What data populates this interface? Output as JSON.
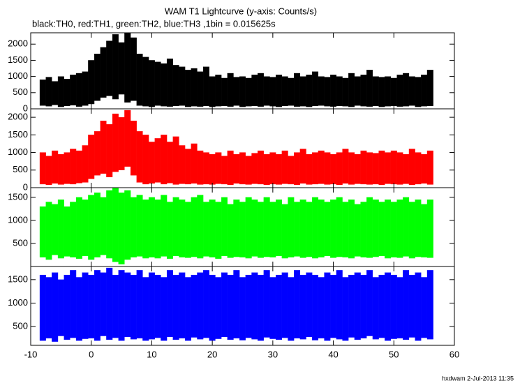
{
  "footer": "hxdwam  2-Jul-2013 11:35",
  "chart_data": [
    {
      "type": "range",
      "title": "WAM T1 Lightcurve (y-axis: Counts/s)",
      "subtitle": "black:TH0, red:TH1, green:TH2, blue:TH3 ,1bin = 0.015625s",
      "x": [
        -8,
        -7,
        -6,
        -5,
        -4,
        -3,
        -2,
        -1,
        0,
        1,
        2,
        3,
        4,
        5,
        6,
        7,
        8,
        9,
        10,
        11,
        12,
        13,
        14,
        15,
        16,
        17,
        18,
        19,
        20,
        21,
        22,
        23,
        24,
        25,
        26,
        27,
        28,
        29,
        30,
        31,
        32,
        33,
        34,
        35,
        36,
        37,
        38,
        39,
        40,
        41,
        42,
        43,
        44,
        45,
        46,
        47,
        48,
        49,
        50,
        51,
        52,
        53,
        54,
        55,
        56
      ],
      "xlim": [
        -10,
        60
      ],
      "ylim": [
        0,
        2350
      ],
      "yticks": [
        0,
        500,
        1000,
        1500,
        2000
      ],
      "series": [
        {
          "color": "#000000",
          "values": [
            900,
            980,
            850,
            1000,
            920,
            1050,
            1100,
            1150,
            1500,
            1700,
            1900,
            2100,
            2300,
            2050,
            2350,
            2200,
            1700,
            1600,
            1500,
            1450,
            1400,
            1550,
            1350,
            1300,
            1200,
            1250,
            1150,
            1300,
            1000,
            1050,
            950,
            1100,
            980,
            1000,
            950,
            1050,
            1100,
            1000,
            980,
            1050,
            1000,
            950,
            1100,
            1000,
            1050,
            1150,
            1000,
            980,
            1050,
            1000,
            950,
            1100,
            1000,
            1050,
            1200,
            1000,
            980,
            1000,
            950,
            1050,
            1100,
            1000,
            980,
            1050,
            1200
          ],
          "low": [
            100,
            80,
            120,
            60,
            90,
            110,
            70,
            100,
            150,
            250,
            350,
            400,
            300,
            450,
            200,
            250,
            100,
            80,
            60,
            100,
            80,
            70,
            90,
            100,
            60,
            80,
            70,
            90,
            60,
            80,
            90,
            70,
            100,
            60,
            80,
            90,
            70,
            100,
            80,
            60,
            90,
            100,
            70,
            80,
            60,
            90,
            100,
            80,
            70,
            90,
            80,
            60,
            100,
            80,
            70,
            90,
            60,
            80,
            90,
            70,
            80,
            100,
            60,
            80,
            90
          ]
        }
      ]
    },
    {
      "type": "range",
      "x": [
        -8,
        -7,
        -6,
        -5,
        -4,
        -3,
        -2,
        -1,
        0,
        1,
        2,
        3,
        4,
        5,
        6,
        7,
        8,
        9,
        10,
        11,
        12,
        13,
        14,
        15,
        16,
        17,
        18,
        19,
        20,
        21,
        22,
        23,
        24,
        25,
        26,
        27,
        28,
        29,
        30,
        31,
        32,
        33,
        34,
        35,
        36,
        37,
        38,
        39,
        40,
        41,
        42,
        43,
        44,
        45,
        46,
        47,
        48,
        49,
        50,
        51,
        52,
        53,
        54,
        55,
        56
      ],
      "xlim": [
        -10,
        60
      ],
      "ylim": [
        0,
        2240
      ],
      "yticks": [
        0,
        500,
        1000,
        1500,
        2000
      ],
      "series": [
        {
          "color": "#ff0000",
          "values": [
            1000,
            900,
            1050,
            950,
            1000,
            1100,
            1050,
            1200,
            1500,
            1600,
            1900,
            1800,
            2100,
            2000,
            2200,
            1900,
            1600,
            1500,
            1300,
            1400,
            1500,
            1300,
            1450,
            1200,
            1100,
            1250,
            1050,
            1000,
            950,
            1000,
            900,
            1050,
            950,
            1000,
            900,
            980,
            1050,
            950,
            1000,
            950,
            1050,
            900,
            1000,
            1100,
            950,
            1000,
            1050,
            1000,
            950,
            1000,
            1100,
            1000,
            950,
            1050,
            1000,
            980,
            1050,
            1000,
            1050,
            1000,
            950,
            1100,
            1000,
            950,
            1050
          ],
          "low": [
            100,
            80,
            120,
            90,
            110,
            100,
            130,
            150,
            250,
            350,
            400,
            300,
            450,
            500,
            600,
            350,
            150,
            100,
            120,
            150,
            100,
            130,
            90,
            110,
            100,
            120,
            90,
            100,
            90,
            110,
            100,
            80,
            120,
            100,
            90,
            110,
            100,
            80,
            100,
            90,
            110,
            100,
            80,
            120,
            90,
            100,
            110,
            90,
            100,
            80,
            120,
            90,
            110,
            100,
            90,
            100,
            80,
            110,
            100,
            90,
            110,
            80,
            100,
            120,
            90
          ]
        }
      ]
    },
    {
      "type": "range",
      "x": [
        -8,
        -7,
        -6,
        -5,
        -4,
        -3,
        -2,
        -1,
        0,
        1,
        2,
        3,
        4,
        5,
        6,
        7,
        8,
        9,
        10,
        11,
        12,
        13,
        14,
        15,
        16,
        17,
        18,
        19,
        20,
        21,
        22,
        23,
        24,
        25,
        26,
        27,
        28,
        29,
        30,
        31,
        32,
        33,
        34,
        35,
        36,
        37,
        38,
        39,
        40,
        41,
        42,
        43,
        44,
        45,
        46,
        47,
        48,
        49,
        50,
        51,
        52,
        53,
        54,
        55,
        56
      ],
      "xlim": [
        -10,
        60
      ],
      "ylim": [
        0,
        1710
      ],
      "yticks": [
        500,
        1000,
        1500
      ],
      "series": [
        {
          "color": "#00ff00",
          "values": [
            1300,
            1400,
            1350,
            1450,
            1300,
            1400,
            1500,
            1450,
            1550,
            1600,
            1500,
            1650,
            1700,
            1600,
            1650,
            1500,
            1550,
            1450,
            1500,
            1450,
            1550,
            1400,
            1500,
            1450,
            1400,
            1500,
            1550,
            1400,
            1450,
            1400,
            1500,
            1350,
            1450,
            1400,
            1500,
            1450,
            1400,
            1500,
            1400,
            1450,
            1350,
            1500,
            1400,
            1450,
            1400,
            1500,
            1450,
            1400,
            1450,
            1500,
            1400,
            1450,
            1350,
            1400,
            1500,
            1450,
            1400,
            1450,
            1400,
            1450,
            1500,
            1400,
            1450,
            1350,
            1450
          ],
          "low": [
            200,
            150,
            250,
            180,
            220,
            200,
            170,
            230,
            150,
            200,
            250,
            180,
            100,
            50,
            150,
            200,
            220,
            180,
            200,
            180,
            220,
            170,
            230,
            200,
            190,
            210,
            180,
            220,
            200,
            170,
            230,
            190,
            210,
            200,
            180,
            220,
            190,
            210,
            200,
            230,
            180,
            200,
            220,
            190,
            210,
            180,
            200,
            230,
            190,
            210,
            200,
            180,
            220,
            200,
            190,
            210,
            230,
            180,
            200,
            190,
            220,
            180,
            210,
            200,
            190
          ]
        }
      ]
    },
    {
      "type": "range",
      "x": [
        -8,
        -7,
        -6,
        -5,
        -4,
        -3,
        -2,
        -1,
        0,
        1,
        2,
        3,
        4,
        5,
        6,
        7,
        8,
        9,
        10,
        11,
        12,
        13,
        14,
        15,
        16,
        17,
        18,
        19,
        20,
        21,
        22,
        23,
        24,
        25,
        26,
        27,
        28,
        29,
        30,
        31,
        32,
        33,
        34,
        35,
        36,
        37,
        38,
        39,
        40,
        41,
        42,
        43,
        44,
        45,
        46,
        47,
        48,
        49,
        50,
        51,
        52,
        53,
        54,
        55,
        56
      ],
      "xlim": [
        -10,
        60
      ],
      "xticks": [
        -10,
        0,
        10,
        20,
        30,
        40,
        50,
        60
      ],
      "ylim": [
        100,
        1780
      ],
      "yticks": [
        500,
        1000,
        1500
      ],
      "series": [
        {
          "color": "#0000ff",
          "values": [
            1600,
            1550,
            1650,
            1500,
            1600,
            1700,
            1550,
            1650,
            1600,
            1700,
            1650,
            1750,
            1600,
            1700,
            1650,
            1600,
            1700,
            1550,
            1650,
            1600,
            1550,
            1700,
            1600,
            1650,
            1550,
            1600,
            1650,
            1700,
            1600,
            1550,
            1650,
            1600,
            1700,
            1550,
            1600,
            1650,
            1600,
            1700,
            1550,
            1600,
            1650,
            1550,
            1700,
            1600,
            1650,
            1600,
            1550,
            1650,
            1600,
            1700,
            1550,
            1600,
            1650,
            1600,
            1700,
            1550,
            1600,
            1650,
            1600,
            1550,
            1700,
            1600,
            1650,
            1550,
            1700
          ],
          "low": [
            200,
            250,
            180,
            300,
            220,
            260,
            200,
            240,
            250,
            200,
            300,
            220,
            260,
            200,
            280,
            230,
            250,
            200,
            230,
            260,
            200,
            280,
            220,
            250,
            200,
            270,
            230,
            260,
            200,
            240,
            280,
            220,
            250,
            210,
            260,
            230,
            200,
            270,
            240,
            220,
            260,
            200,
            250,
            230,
            280,
            210,
            250,
            200,
            260,
            230,
            200,
            270,
            220,
            250,
            300,
            230,
            260,
            200,
            240,
            250,
            220,
            270,
            200,
            260,
            230
          ]
        }
      ]
    }
  ]
}
